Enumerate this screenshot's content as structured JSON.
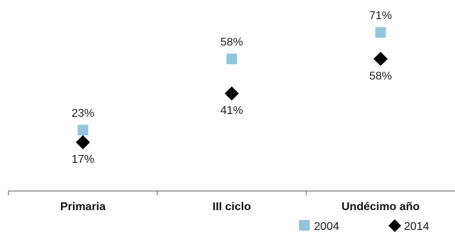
{
  "chart_data": {
    "type": "scatter",
    "categories": [
      "Primaria",
      "III ciclo",
      "Undécimo año"
    ],
    "series": [
      {
        "name": "2004",
        "values": [
          23,
          58,
          71
        ],
        "labels": [
          "23%",
          "58%",
          "71%"
        ],
        "marker": "square",
        "color": "#92c5de"
      },
      {
        "name": "2014",
        "values": [
          17,
          41,
          58
        ],
        "labels": [
          "17%",
          "41%",
          "58%"
        ],
        "marker": "diamond",
        "color": "#000000"
      }
    ],
    "title": "",
    "xlabel": "",
    "ylabel": "",
    "ylim": [
      0,
      80
    ],
    "grid": false,
    "legend": "bottom-right"
  }
}
